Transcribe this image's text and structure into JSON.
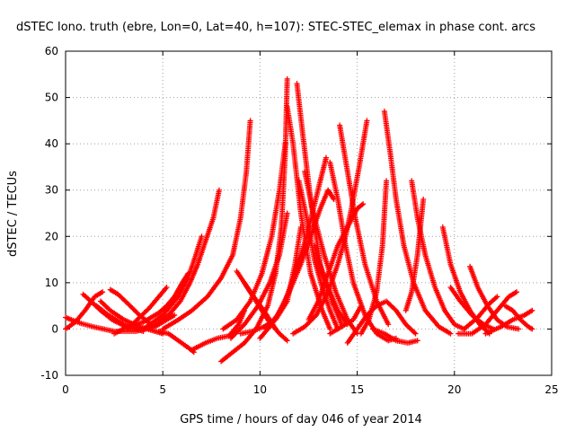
{
  "chart_data": {
    "type": "scatter",
    "title": "dSTEC Iono. truth (ebre, Lon=0, Lat=40, h=107): STEC-STEC_elemax in phase cont. arcs",
    "xlabel": "GPS time / hours of day 046 of year 2014",
    "ylabel": "dSTEC  / TECUs",
    "xlim": [
      0,
      25
    ],
    "ylim": [
      -10,
      60
    ],
    "x_ticks": [
      "0",
      "5",
      "10",
      "15",
      "20",
      "25"
    ],
    "y_ticks": [
      "-10",
      "0",
      "10",
      "20",
      "30",
      "40",
      "50",
      "60"
    ],
    "grid": true,
    "marker": "+",
    "marker_color": "#ff0000",
    "series": [
      {
        "x": [
          0.0,
          0.5,
          1.0,
          1.5,
          1.9
        ],
        "y": [
          0.0,
          1.5,
          4.0,
          7.0,
          8.0
        ]
      },
      {
        "x": [
          0.0,
          0.3,
          0.8,
          1.5,
          2.5,
          3.6,
          4.6,
          5.6
        ],
        "y": [
          2.5,
          2.0,
          1.2,
          0.4,
          -0.5,
          -0.5,
          0.5,
          3.0
        ]
      },
      {
        "x": [
          0.9,
          1.3,
          1.8,
          2.4,
          3.1,
          3.7
        ],
        "y": [
          7.5,
          6.0,
          4.0,
          2.0,
          0.5,
          0.0
        ]
      },
      {
        "x": [
          1.8,
          2.3,
          3.0,
          3.8,
          4.6,
          5.0
        ],
        "y": [
          6.0,
          4.0,
          2.0,
          0.5,
          -0.5,
          -1.0
        ]
      },
      {
        "x": [
          2.3,
          2.7,
          3.2,
          3.8,
          4.4
        ],
        "y": [
          8.5,
          7.5,
          5.5,
          3.0,
          1.0
        ]
      },
      {
        "x": [
          1.6,
          2.2,
          3.0,
          3.6,
          4.0
        ],
        "y": [
          5.0,
          3.0,
          1.0,
          0.0,
          -0.5
        ]
      },
      {
        "x": [
          2.5,
          3.2,
          4.0,
          4.8,
          5.2,
          5.6,
          6.0,
          6.3
        ],
        "y": [
          -1.0,
          0.5,
          1.5,
          3.5,
          5.0,
          7.0,
          10.0,
          12.0
        ]
      },
      {
        "x": [
          3.2,
          3.8,
          4.3,
          4.8,
          5.2
        ],
        "y": [
          0.0,
          2.5,
          4.5,
          7.0,
          9.0
        ]
      },
      {
        "x": [
          4.0,
          5.0,
          5.8,
          6.3,
          6.7,
          7.0
        ],
        "y": [
          0.0,
          3.0,
          7.0,
          11.0,
          16.0,
          20.0
        ]
      },
      {
        "x": [
          4.5,
          5.3,
          5.9,
          6.4,
          6.8,
          7.2,
          7.6,
          7.9
        ],
        "y": [
          0.5,
          3.0,
          6.0,
          10.0,
          14.0,
          19.0,
          24.0,
          30.0
        ]
      },
      {
        "x": [
          5.0,
          5.8,
          6.5,
          7.3,
          8.0,
          8.6,
          9.0,
          9.3,
          9.5
        ],
        "y": [
          0.0,
          2.0,
          4.0,
          7.0,
          11.0,
          16.0,
          24.0,
          34.0,
          45.0
        ]
      },
      {
        "x": [
          4.8,
          5.3,
          5.8,
          6.3,
          6.6
        ],
        "y": [
          -0.5,
          -1.0,
          -2.5,
          -4.0,
          -5.0
        ]
      },
      {
        "x": [
          6.5,
          7.2,
          7.8,
          8.4,
          8.9,
          9.2
        ],
        "y": [
          -4.5,
          -3.0,
          -2.0,
          -1.5,
          1.0,
          4.0
        ]
      },
      {
        "x": [
          8.0,
          8.6,
          9.2,
          9.8,
          10.4,
          10.8,
          11.1,
          11.3,
          11.4
        ],
        "y": [
          -7.0,
          -5.0,
          -3.0,
          0.0,
          5.0,
          12.0,
          22.0,
          38.0,
          54.0
        ]
      },
      {
        "x": [
          8.1,
          8.8,
          9.5,
          10.1,
          10.6,
          11.0,
          11.3
        ],
        "y": [
          0.0,
          2.0,
          6.0,
          12.0,
          20.0,
          30.0,
          40.0
        ]
      },
      {
        "x": [
          8.5,
          9.2,
          9.9,
          10.5,
          11.0,
          11.4
        ],
        "y": [
          -2.0,
          1.0,
          5.0,
          10.0,
          16.0,
          25.0
        ]
      },
      {
        "x": [
          9.0,
          9.6,
          10.2,
          10.8,
          11.4,
          11.8,
          12.1
        ],
        "y": [
          -1.0,
          -0.5,
          0.5,
          2.0,
          6.0,
          14.0,
          22.0
        ]
      },
      {
        "x": [
          8.8,
          9.5,
          10.2,
          10.8
        ],
        "y": [
          12.5,
          8.0,
          4.0,
          0.0
        ]
      },
      {
        "x": [
          9.2,
          9.8,
          10.4,
          11.0,
          11.4
        ],
        "y": [
          10.0,
          6.0,
          2.0,
          -1.0,
          -2.5
        ]
      },
      {
        "x": [
          10.0,
          10.6,
          11.2,
          11.8,
          12.4,
          13.1,
          13.4
        ],
        "y": [
          -2.0,
          1.0,
          5.0,
          12.0,
          20.0,
          32.0,
          37.0
        ]
      },
      {
        "x": [
          10.3,
          10.9,
          11.5,
          12.1,
          12.6,
          13.1,
          13.5,
          13.8
        ],
        "y": [
          0.0,
          3.0,
          8.0,
          14.0,
          20.0,
          26.0,
          30.0,
          28.0
        ]
      },
      {
        "x": [
          11.4,
          11.7,
          12.1,
          12.6,
          13.2,
          13.6
        ],
        "y": [
          48.0,
          40.0,
          25.0,
          12.0,
          4.0,
          0.0
        ]
      },
      {
        "x": [
          11.9,
          12.2,
          12.6,
          13.1,
          13.7,
          14.2
        ],
        "y": [
          53.0,
          42.0,
          28.0,
          14.0,
          6.0,
          1.0
        ]
      },
      {
        "x": [
          12.0,
          12.4,
          12.8,
          13.2,
          13.6,
          14.0
        ],
        "y": [
          32.0,
          24.0,
          15.0,
          9.0,
          4.0,
          0.0
        ]
      },
      {
        "x": [
          12.3,
          12.8,
          13.3,
          13.9,
          14.5,
          15.0
        ],
        "y": [
          34.0,
          24.0,
          16.0,
          8.0,
          2.0,
          -1.0
        ]
      },
      {
        "x": [
          12.8,
          13.2,
          13.6,
          14.0,
          14.5
        ],
        "y": [
          18.0,
          12.0,
          8.0,
          4.0,
          1.0
        ]
      },
      {
        "x": [
          11.7,
          12.3,
          12.9,
          13.5,
          14.0,
          14.4,
          14.7,
          15.1,
          15.5
        ],
        "y": [
          -1.0,
          0.5,
          3.0,
          8.0,
          14.0,
          20.0,
          26.0,
          35.0,
          45.0
        ]
      },
      {
        "x": [
          12.5,
          13.0,
          13.5,
          14.0,
          14.5,
          15.0,
          15.3
        ],
        "y": [
          2.0,
          6.0,
          12.0,
          18.0,
          22.0,
          26.0,
          27.0
        ]
      },
      {
        "x": [
          13.6,
          14.0,
          14.4,
          14.8,
          15.4,
          16.0,
          16.6,
          17.0
        ],
        "y": [
          36.0,
          28.0,
          18.0,
          10.0,
          3.0,
          -1.0,
          -2.5,
          -2.0
        ]
      },
      {
        "x": [
          14.1,
          14.5,
          14.9,
          15.4,
          16.0,
          16.6
        ],
        "y": [
          44.0,
          34.0,
          24.0,
          14.0,
          6.0,
          1.0
        ]
      },
      {
        "x": [
          13.6,
          14.2,
          14.8,
          15.2
        ],
        "y": [
          -1.0,
          0.5,
          2.0,
          5.0
        ]
      },
      {
        "x": [
          14.5,
          15.0,
          15.5,
          16.0,
          16.5,
          17.0,
          17.5,
          18.0
        ],
        "y": [
          -3.0,
          0.0,
          3.0,
          5.0,
          6.0,
          4.0,
          1.0,
          -1.0
        ]
      },
      {
        "x": [
          15.2,
          15.6,
          16.0,
          16.3,
          16.5
        ],
        "y": [
          -1.0,
          2.0,
          8.0,
          18.0,
          32.0
        ]
      },
      {
        "x": [
          16.4,
          16.7,
          17.0,
          17.4,
          17.9,
          18.5,
          19.2,
          19.8
        ],
        "y": [
          47.0,
          38.0,
          28.0,
          18.0,
          10.0,
          4.0,
          0.5,
          -1.0
        ]
      },
      {
        "x": [
          15.8,
          16.4,
          17.0,
          17.6,
          18.1
        ],
        "y": [
          0.0,
          -1.0,
          -2.5,
          -3.0,
          -2.5
        ]
      },
      {
        "x": [
          17.8,
          18.1,
          18.5,
          19.0,
          19.5,
          20.0,
          20.5
        ],
        "y": [
          32.0,
          24.0,
          16.0,
          9.0,
          4.0,
          1.0,
          0.0
        ]
      },
      {
        "x": [
          17.5,
          17.8,
          18.1,
          18.4
        ],
        "y": [
          4.0,
          8.0,
          16.0,
          28.0
        ]
      },
      {
        "x": [
          19.4,
          19.8,
          20.3,
          20.8,
          21.3,
          21.8
        ],
        "y": [
          22.0,
          14.0,
          8.0,
          4.0,
          1.0,
          -1.0
        ]
      },
      {
        "x": [
          19.8,
          20.3,
          20.9,
          21.5,
          22.0
        ],
        "y": [
          9.0,
          6.0,
          3.0,
          1.0,
          0.0
        ]
      },
      {
        "x": [
          20.8,
          21.2,
          21.7,
          22.2,
          22.7,
          23.3
        ],
        "y": [
          13.5,
          9.0,
          5.0,
          2.0,
          0.5,
          0.0
        ]
      },
      {
        "x": [
          20.2,
          20.9,
          21.6,
          22.2,
          22.8,
          23.2
        ],
        "y": [
          -1.0,
          -1.0,
          1.0,
          4.0,
          7.0,
          8.0
        ]
      },
      {
        "x": [
          20.5,
          21.2,
          21.8,
          22.2
        ],
        "y": [
          0.0,
          2.5,
          5.5,
          7.0
        ]
      },
      {
        "x": [
          21.6,
          22.4,
          23.0,
          23.6,
          24.0
        ],
        "y": [
          -1.0,
          0.5,
          2.0,
          3.0,
          4.0
        ]
      },
      {
        "x": [
          22.6,
          23.0,
          23.4,
          23.8,
          24.0
        ],
        "y": [
          5.0,
          4.0,
          2.0,
          0.5,
          0.0
        ]
      }
    ]
  }
}
